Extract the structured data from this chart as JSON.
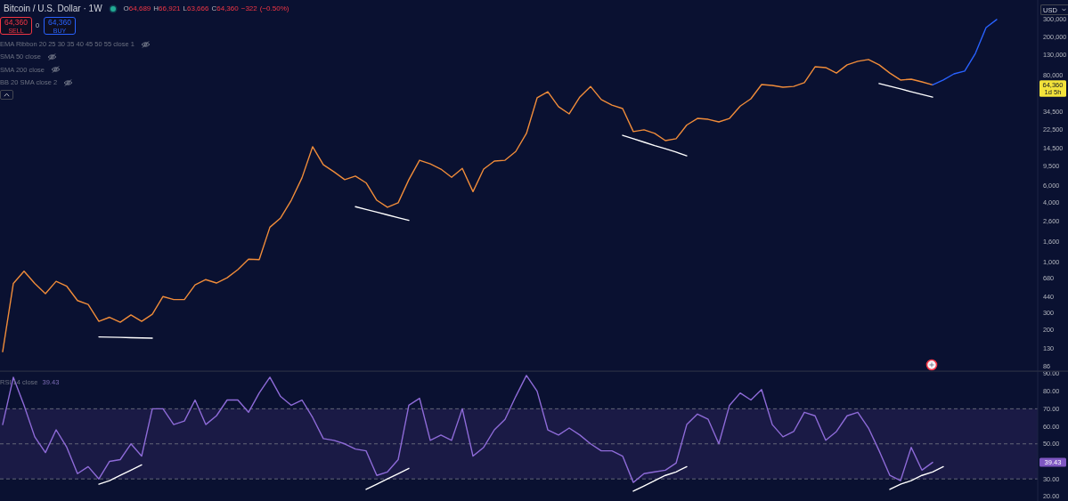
{
  "chart_data": [
    {
      "type": "line",
      "title": "Bitcoin / U.S. Dollar · 1W",
      "subtitle": "O64,689 H66,921 L63,666 C64,360 −322 (−0.50%)",
      "categories": [
        null,
        null,
        null,
        null,
        null,
        null,
        null,
        null,
        null,
        null,
        null,
        null,
        null,
        null,
        null,
        null,
        null,
        null,
        null,
        null,
        null,
        null,
        null,
        null,
        null,
        null,
        null,
        null,
        null,
        null,
        null,
        null,
        null,
        null,
        null,
        null,
        null,
        null,
        null,
        null,
        null,
        null,
        null,
        null,
        null,
        null,
        null,
        null,
        null,
        null,
        null,
        null,
        null,
        null,
        null,
        null,
        null,
        null,
        null,
        null,
        null,
        null,
        null,
        null,
        null,
        null,
        null,
        null,
        null,
        null,
        null,
        null,
        null,
        null,
        null,
        null,
        null,
        null,
        null,
        null,
        null,
        null,
        null,
        null,
        null,
        null,
        null,
        null,
        null,
        null,
        null,
        null,
        null,
        null
      ],
      "log": true,
      "ylim": [
        76,
        475000
      ],
      "yticks": [
        86,
        130,
        200,
        300,
        440,
        680,
        {
          "value": 1000,
          "label": "1,000"
        },
        {
          "value": 1600,
          "label": "1,600"
        },
        {
          "value": 2600,
          "label": "2,600"
        },
        {
          "value": 4000,
          "label": "4,000"
        },
        {
          "value": 6000,
          "label": "6,000"
        },
        {
          "value": 9500,
          "label": "9,500"
        },
        {
          "value": 14500,
          "label": "14,500"
        },
        {
          "value": 22500,
          "label": "22,500"
        },
        {
          "value": 34500,
          "label": "34,500"
        },
        {
          "value": 80000,
          "label": "80,000"
        },
        {
          "value": 130000,
          "label": "130,000"
        },
        {
          "value": 200000,
          "label": "200,000"
        },
        {
          "value": 300000,
          "label": "300,000"
        }
      ],
      "tick_labels": "y",
      "series": [
        {
          "color": "#f08c3a",
          "values": [
            120,
            600,
            800,
            600,
            470,
            630,
            560,
            400,
            365,
            245,
            270,
            240,
            285,
            245,
            290,
            440,
            410,
            410,
            580,
            655,
            605,
            685,
            830,
            1060,
            1050,
            2250,
            2800,
            4250,
            7200,
            15000,
            9800,
            8300,
            6900,
            7500,
            6400,
            4250,
            3600,
            4000,
            6900,
            10900,
            10000,
            8850,
            7300,
            9000,
            5200,
            8850,
            10700,
            10900,
            13400,
            20500,
            47400,
            54800,
            38500,
            32500,
            48400,
            62000,
            45500,
            40000,
            36800,
            21400,
            22300,
            20500,
            17300,
            18100,
            25000,
            29200,
            28600,
            26900,
            29200,
            39000,
            46400,
            64900,
            63500,
            60900,
            62000,
            67700,
            98500,
            96600,
            85000,
            103000,
            112000,
            117000,
            103000,
            85000,
            72100,
            73600,
            69100,
            64360,
            null,
            null,
            null,
            null,
            null,
            null
          ]
        },
        {
          "color": "#2962ff",
          "values": [
            null,
            null,
            null,
            null,
            null,
            null,
            null,
            null,
            null,
            null,
            null,
            null,
            null,
            null,
            null,
            null,
            null,
            null,
            null,
            null,
            null,
            null,
            null,
            null,
            null,
            null,
            null,
            null,
            null,
            null,
            null,
            null,
            null,
            null,
            null,
            null,
            null,
            null,
            null,
            null,
            null,
            null,
            null,
            null,
            null,
            null,
            null,
            null,
            null,
            null,
            null,
            null,
            null,
            null,
            null,
            null,
            null,
            null,
            null,
            null,
            null,
            null,
            null,
            null,
            null,
            null,
            null,
            null,
            null,
            null,
            null,
            null,
            null,
            null,
            null,
            null,
            null,
            null,
            null,
            null,
            null,
            null,
            null,
            null,
            null,
            null,
            null,
            64360,
            72100,
            83400,
            89000,
            135000,
            248000,
            300000
          ]
        },
        {
          "color": "#ffffff",
          "values": [
            null,
            null,
            null,
            null,
            null,
            null,
            null,
            null,
            null,
            170,
            169,
            168,
            167,
            166,
            165,
            null,
            null,
            null,
            null,
            null,
            null,
            null,
            null,
            null,
            null,
            null,
            null,
            null,
            null,
            null,
            null,
            null,
            null,
            null,
            null,
            null,
            null,
            null,
            null,
            null,
            null,
            null,
            null,
            null,
            null,
            null,
            null,
            null,
            null,
            null,
            null,
            null,
            null,
            null,
            null,
            null,
            null,
            null,
            null,
            null,
            null,
            null,
            null,
            null,
            null,
            null,
            null,
            null,
            null,
            null,
            null,
            null,
            null,
            null,
            null,
            null,
            null,
            null,
            null,
            null,
            null,
            null,
            null,
            null,
            null,
            null,
            null,
            null,
            null,
            null,
            null,
            null,
            null,
            null
          ]
        },
        {
          "color": "#ffffff",
          "values": [
            null,
            null,
            null,
            null,
            null,
            null,
            null,
            null,
            null,
            null,
            null,
            null,
            null,
            null,
            null,
            null,
            null,
            null,
            null,
            null,
            null,
            null,
            null,
            null,
            null,
            null,
            null,
            null,
            null,
            null,
            null,
            null,
            null,
            3650,
            3420,
            3210,
            3010,
            2820,
            2650,
            null,
            null,
            null,
            null,
            null,
            null,
            null,
            null,
            null,
            null,
            null,
            null,
            null,
            null,
            null,
            null,
            null,
            null,
            null,
            null,
            null,
            null,
            null,
            null,
            null,
            null,
            null,
            null,
            null,
            null,
            null,
            null,
            null,
            null,
            null,
            null,
            null,
            null,
            null,
            null,
            null,
            null,
            null,
            null,
            null,
            null,
            null,
            null,
            null,
            null,
            null,
            null,
            null,
            null,
            null
          ]
        },
        {
          "color": "#ffffff",
          "values": [
            null,
            null,
            null,
            null,
            null,
            null,
            null,
            null,
            null,
            null,
            null,
            null,
            null,
            null,
            null,
            null,
            null,
            null,
            null,
            null,
            null,
            null,
            null,
            null,
            null,
            null,
            null,
            null,
            null,
            null,
            null,
            null,
            null,
            null,
            null,
            null,
            null,
            null,
            null,
            null,
            null,
            null,
            null,
            null,
            null,
            null,
            null,
            null,
            null,
            null,
            null,
            null,
            null,
            null,
            null,
            null,
            null,
            null,
            19600,
            18100,
            16700,
            15400,
            14300,
            13200,
            12100,
            null,
            null,
            null,
            null,
            null,
            null,
            null,
            null,
            null,
            null,
            null,
            null,
            null,
            null,
            null,
            null,
            null,
            null,
            null,
            null,
            null,
            null,
            null,
            null,
            null,
            null,
            null,
            null,
            null
          ]
        },
        {
          "color": "#ffffff",
          "values": [
            null,
            null,
            null,
            null,
            null,
            null,
            null,
            null,
            null,
            null,
            null,
            null,
            null,
            null,
            null,
            null,
            null,
            null,
            null,
            null,
            null,
            null,
            null,
            null,
            null,
            null,
            null,
            null,
            null,
            null,
            null,
            null,
            null,
            null,
            null,
            null,
            null,
            null,
            null,
            null,
            null,
            null,
            null,
            null,
            null,
            null,
            null,
            null,
            null,
            null,
            null,
            null,
            null,
            null,
            null,
            null,
            null,
            null,
            null,
            null,
            null,
            null,
            null,
            null,
            null,
            null,
            null,
            null,
            null,
            null,
            null,
            null,
            null,
            null,
            null,
            null,
            null,
            null,
            null,
            null,
            null,
            null,
            66500,
            62300,
            58500,
            54700,
            51300,
            48200,
            null,
            null,
            null,
            null,
            null,
            null
          ]
        }
      ],
      "annotations": [
        "64,360",
        "SELL",
        "0",
        "64,360",
        "BUY",
        "EMA Ribbon 20 25 30 35 40 45 50 55 close 1",
        "SMA 50 close",
        "SMA 200 close",
        "BB 20 SMA close 2",
        "USD",
        "64,360",
        "1d 5h"
      ]
    },
    {
      "type": "line",
      "title": "RSI 14 close",
      "categories": [
        null,
        null,
        null,
        null,
        null,
        null,
        null,
        null,
        null,
        null,
        null,
        null,
        null,
        null,
        null,
        null,
        null,
        null,
        null,
        null,
        null,
        null,
        null,
        null,
        null,
        null,
        null,
        null,
        null,
        null,
        null,
        null,
        null,
        null,
        null,
        null,
        null,
        null,
        null,
        null,
        null,
        null,
        null,
        null,
        null,
        null,
        null,
        null,
        null,
        null,
        null,
        null,
        null,
        null,
        null,
        null,
        null,
        null,
        null,
        null,
        null,
        null,
        null,
        null,
        null,
        null,
        null,
        null,
        null,
        null,
        null,
        null,
        null,
        null,
        null,
        null,
        null,
        null,
        null,
        null,
        null,
        null,
        null,
        null,
        null,
        null,
        null,
        null,
        null,
        null,
        null,
        null,
        null,
        null
      ],
      "ylim": [
        17.4,
        91.5
      ],
      "yticks": [
        {
          "value": 20,
          "label": "20.00"
        },
        {
          "value": 30,
          "label": "30.00"
        },
        {
          "value": 50,
          "label": "50.00"
        },
        {
          "value": 60,
          "label": "60.00"
        },
        {
          "value": 70,
          "label": "70.00"
        },
        {
          "value": 80,
          "label": "80.00"
        },
        {
          "value": 90,
          "label": "90.00"
        }
      ],
      "tick_labels": "y",
      "bands": [
        {
          "axis": "y",
          "from": 30,
          "to": 70,
          "color": "#7e57c2"
        }
      ],
      "ref_lines": [
        {
          "axis": "y",
          "value": 70,
          "color": "#787b86",
          "line_style": "dashed"
        },
        {
          "axis": "y",
          "value": 50,
          "color": "#787b86",
          "line_style": "dashed"
        },
        {
          "axis": "y",
          "value": 30,
          "color": "#787b86",
          "line_style": "dashed"
        }
      ],
      "series": [
        {
          "color": "#8e6bd8",
          "values": [
            61,
            88,
            72,
            54,
            45,
            58,
            48,
            33,
            37,
            30,
            40,
            41,
            50,
            43,
            70,
            70,
            61,
            63,
            75,
            61,
            66,
            75,
            75,
            68,
            79,
            88,
            77,
            72,
            75,
            65,
            53,
            52,
            50,
            47,
            46,
            32,
            34,
            41,
            72,
            76,
            52,
            55,
            52,
            70,
            43,
            48,
            58,
            64,
            77,
            89,
            80,
            58,
            55,
            59,
            55,
            50,
            46,
            46,
            43,
            28,
            33,
            34,
            35,
            39,
            61,
            67,
            64,
            50,
            72,
            79,
            75,
            81,
            61,
            54,
            57,
            68,
            66,
            52,
            57,
            66,
            68,
            59,
            46,
            32,
            29,
            48,
            35,
            39.43,
            null,
            null,
            null,
            null,
            null,
            null
          ]
        },
        {
          "color": "#ffffff",
          "values": [
            null,
            null,
            null,
            null,
            null,
            null,
            null,
            null,
            null,
            27,
            29,
            32,
            35,
            38,
            null,
            null,
            null,
            null,
            null,
            null,
            null,
            null,
            null,
            null,
            null,
            null,
            null,
            null,
            null,
            null,
            null,
            null,
            null,
            null,
            null,
            null,
            null,
            null,
            null,
            null,
            null,
            null,
            null,
            null,
            null,
            null,
            null,
            null,
            null,
            null,
            null,
            null,
            null,
            null,
            null,
            null,
            null,
            null,
            null,
            null,
            null,
            null,
            null,
            null,
            null,
            null,
            null,
            null,
            null,
            null,
            null,
            null,
            null,
            null,
            null,
            null,
            null,
            null,
            null,
            null,
            null,
            null,
            null,
            null,
            null,
            null,
            null,
            null,
            null,
            null,
            null,
            null,
            null,
            null
          ]
        },
        {
          "color": "#ffffff",
          "values": [
            null,
            null,
            null,
            null,
            null,
            null,
            null,
            null,
            null,
            null,
            null,
            null,
            null,
            null,
            null,
            null,
            null,
            null,
            null,
            null,
            null,
            null,
            null,
            null,
            null,
            null,
            null,
            null,
            null,
            null,
            null,
            null,
            null,
            null,
            24,
            27,
            30,
            33,
            36,
            null,
            null,
            null,
            null,
            null,
            null,
            null,
            null,
            null,
            null,
            null,
            null,
            null,
            null,
            null,
            null,
            null,
            null,
            null,
            null,
            null,
            null,
            null,
            null,
            null,
            null,
            null,
            null,
            null,
            null,
            null,
            null,
            null,
            null,
            null,
            null,
            null,
            null,
            null,
            null,
            null,
            null,
            null,
            null,
            null,
            null,
            null,
            null,
            null,
            null,
            null,
            null,
            null,
            null,
            null
          ]
        },
        {
          "color": "#ffffff",
          "values": [
            null,
            null,
            null,
            null,
            null,
            null,
            null,
            null,
            null,
            null,
            null,
            null,
            null,
            null,
            null,
            null,
            null,
            null,
            null,
            null,
            null,
            null,
            null,
            null,
            null,
            null,
            null,
            null,
            null,
            null,
            null,
            null,
            null,
            null,
            null,
            null,
            null,
            null,
            null,
            null,
            null,
            null,
            null,
            null,
            null,
            null,
            null,
            null,
            null,
            null,
            null,
            null,
            null,
            null,
            null,
            null,
            null,
            null,
            null,
            23,
            26,
            29,
            32,
            34,
            37,
            null,
            null,
            null,
            null,
            null,
            null,
            null,
            null,
            null,
            null,
            null,
            null,
            null,
            null,
            null,
            null,
            null,
            null,
            null,
            null,
            null,
            null,
            null,
            null,
            null,
            null,
            null,
            null,
            null
          ]
        },
        {
          "color": "#ffffff",
          "values": [
            null,
            null,
            null,
            null,
            null,
            null,
            null,
            null,
            null,
            null,
            null,
            null,
            null,
            null,
            null,
            null,
            null,
            null,
            null,
            null,
            null,
            null,
            null,
            null,
            null,
            null,
            null,
            null,
            null,
            null,
            null,
            null,
            null,
            null,
            null,
            null,
            null,
            null,
            null,
            null,
            null,
            null,
            null,
            null,
            null,
            null,
            null,
            null,
            null,
            null,
            null,
            null,
            null,
            null,
            null,
            null,
            null,
            null,
            null,
            null,
            null,
            null,
            null,
            null,
            null,
            null,
            null,
            null,
            null,
            null,
            null,
            null,
            null,
            null,
            null,
            null,
            null,
            null,
            null,
            null,
            null,
            null,
            null,
            24,
            27,
            29,
            32,
            34,
            37,
            null,
            null,
            null,
            null,
            null
          ]
        }
      ],
      "annotations": [
        "39.43",
        "39.43"
      ]
    }
  ]
}
